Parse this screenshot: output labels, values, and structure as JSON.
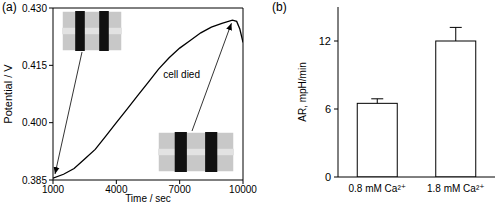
{
  "chart_data": [
    {
      "type": "line",
      "title": "(a)",
      "x_label": "Time / sec",
      "y_label": "Potential / V",
      "x": [
        1000,
        1500,
        2000,
        2500,
        3000,
        3500,
        4000,
        4500,
        5000,
        5500,
        6000,
        6500,
        7000,
        7500,
        8000,
        8500,
        9000,
        9500,
        9700,
        9850,
        10000
      ],
      "values": [
        0.3855,
        0.3865,
        0.388,
        0.3905,
        0.393,
        0.3965,
        0.4,
        0.4035,
        0.407,
        0.4105,
        0.414,
        0.417,
        0.4195,
        0.4215,
        0.4235,
        0.425,
        0.426,
        0.4268,
        0.4265,
        0.4245,
        0.421
      ],
      "color": "#000000",
      "xlim": [
        1000,
        10000
      ],
      "xticks": [
        1000,
        4000,
        7000,
        10000
      ],
      "ylim": [
        0.385,
        0.43
      ],
      "yticks": [
        0.385,
        {
          "value": 0.4,
          "label": "0.400"
        },
        0.415,
        {
          "value": 0.43,
          "label": "0.430"
        }
      ],
      "annotation": "cell died"
    },
    {
      "type": "bar",
      "title": "(b)",
      "y_label": "AR, mpH/min",
      "categories": [
        "0.8 mM Ca²⁺",
        "1.8 mM Ca²⁺"
      ],
      "values": [
        6.5,
        12
      ],
      "errors": [
        0.4,
        1.2
      ],
      "color": "#ffffff",
      "ylim": [
        0,
        15
      ],
      "yticks": [
        0,
        6,
        12
      ]
    }
  ]
}
